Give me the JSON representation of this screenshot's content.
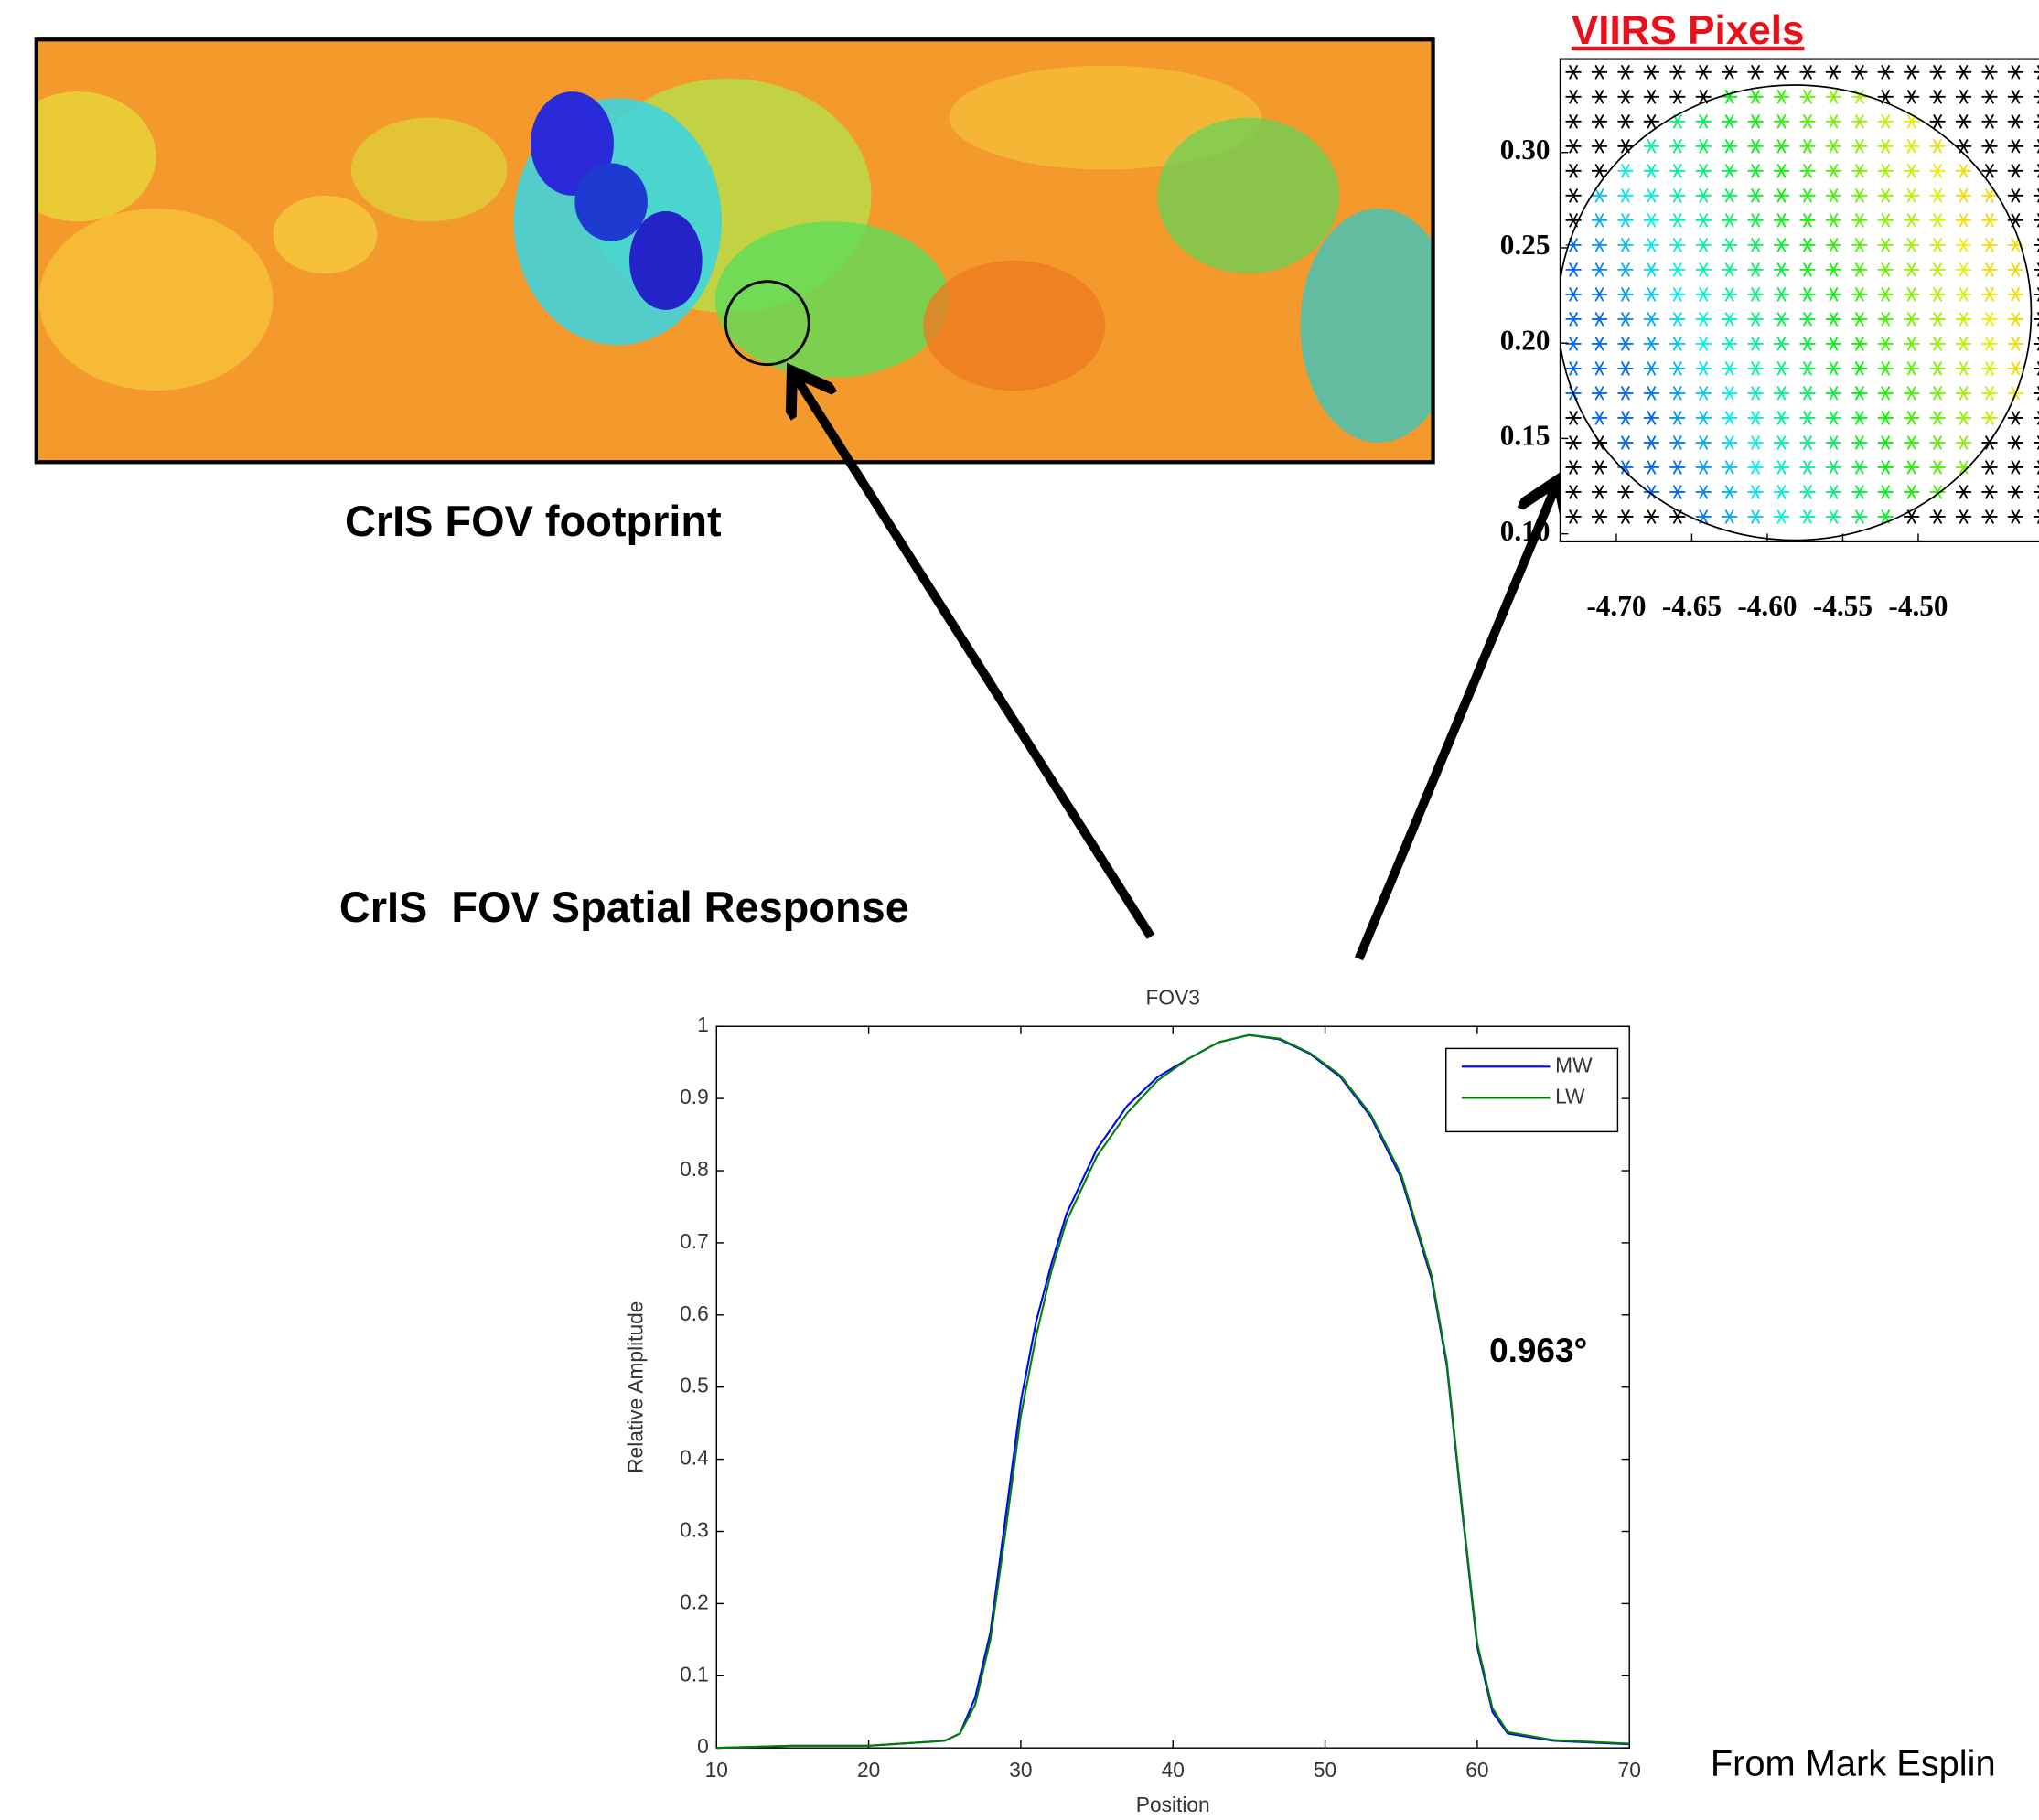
{
  "texts": {
    "footprint_label": "CrIS FOV footprint",
    "response_label": "CrIS  FOV Spatial Response",
    "credit": "From Mark Esplin"
  },
  "chart_data": [
    {
      "type": "line",
      "title": "FOV3",
      "xlabel": "Position",
      "ylabel": "Relative Amplitude",
      "x": [
        10,
        15,
        20,
        25,
        26,
        27,
        28,
        29,
        30,
        31,
        32,
        33,
        35,
        37,
        39,
        41,
        43,
        45,
        47,
        49,
        51,
        53,
        55,
        57,
        58,
        59,
        60,
        61,
        62,
        65,
        70
      ],
      "series": [
        {
          "name": "MW",
          "color": "#0000ff",
          "values": [
            0,
            0.003,
            0.003,
            0.01,
            0.02,
            0.07,
            0.16,
            0.32,
            0.48,
            0.59,
            0.67,
            0.74,
            0.83,
            0.89,
            0.93,
            0.955,
            0.978,
            0.988,
            0.982,
            0.962,
            0.93,
            0.875,
            0.79,
            0.65,
            0.53,
            0.33,
            0.14,
            0.05,
            0.02,
            0.01,
            0.005
          ]
        },
        {
          "name": "LW",
          "color": "#008000",
          "values": [
            0,
            0.003,
            0.003,
            0.01,
            0.02,
            0.06,
            0.15,
            0.3,
            0.46,
            0.57,
            0.66,
            0.73,
            0.82,
            0.88,
            0.925,
            0.955,
            0.978,
            0.988,
            0.983,
            0.963,
            0.932,
            0.878,
            0.795,
            0.655,
            0.535,
            0.335,
            0.145,
            0.055,
            0.022,
            0.011,
            0.006
          ]
        }
      ],
      "xlim": [
        10,
        70
      ],
      "ylim": [
        0,
        1
      ],
      "xticks": [
        10,
        20,
        30,
        40,
        50,
        60,
        70
      ],
      "yticks": [
        0,
        0.1,
        0.2,
        0.3,
        0.4,
        0.5,
        0.6,
        0.7,
        0.8,
        0.9,
        1
      ],
      "legend": "upper right",
      "annotations": [
        {
          "text": "0.963°"
        }
      ]
    },
    {
      "type": "scatter",
      "title": "VIIRS Pixels",
      "xlim": [
        -4.737,
        -4.42
      ],
      "ylim": [
        0.096,
        0.349
      ],
      "xticks": [
        {
          "value": -4.7,
          "label": "-4.70"
        },
        {
          "value": -4.65,
          "label": "-4.65"
        },
        {
          "value": -4.6,
          "label": "-4.60"
        },
        {
          "value": -4.55,
          "label": "-4.55"
        },
        {
          "value": -4.5,
          "label": "-4.50"
        }
      ],
      "yticks": [
        {
          "value": 0.1,
          "label": "0.10"
        },
        {
          "value": 0.15,
          "label": "0.15"
        },
        {
          "value": 0.2,
          "label": "0.20"
        },
        {
          "value": 0.25,
          "label": "0.25"
        },
        {
          "value": 0.3,
          "label": "0.30"
        }
      ]
    }
  ]
}
